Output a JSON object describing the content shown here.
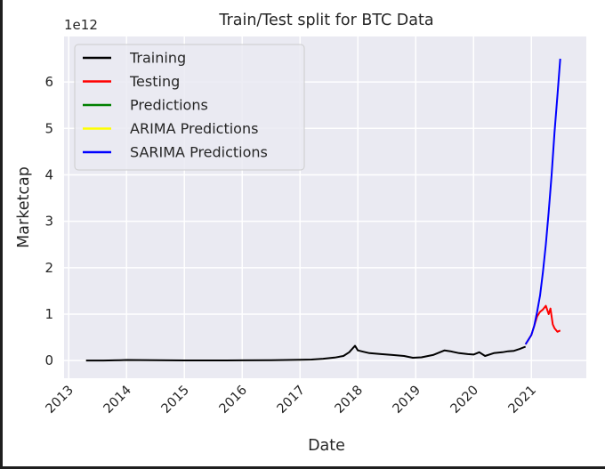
{
  "chart_data": {
    "type": "line",
    "title": "Train/Test split for BTC Data",
    "xlabel": "Date",
    "ylabel": "Marketcap",
    "y_offset_text": "1e12",
    "xlim": [
      2012.92,
      2021.95
    ],
    "ylim": [
      -0.38,
      6.98
    ],
    "x_ticks": [
      "2013",
      "2014",
      "2015",
      "2016",
      "2017",
      "2018",
      "2019",
      "2020",
      "2021"
    ],
    "y_ticks": [
      "0",
      "1",
      "2",
      "3",
      "4",
      "5",
      "6"
    ],
    "grid": true,
    "legend_position": "upper-left",
    "background_color": "#eaeaf2",
    "series": [
      {
        "name": "Training",
        "color": "#000000",
        "x": [
          2013.3,
          2013.6,
          2013.9,
          2014.0,
          2014.5,
          2015.0,
          2015.5,
          2016.0,
          2016.5,
          2017.0,
          2017.2,
          2017.4,
          2017.6,
          2017.75,
          2017.85,
          2017.95,
          2018.0,
          2018.1,
          2018.2,
          2018.4,
          2018.6,
          2018.8,
          2018.95,
          2019.1,
          2019.3,
          2019.5,
          2019.6,
          2019.75,
          2019.9,
          2020.0,
          2020.1,
          2020.2,
          2020.35,
          2020.5,
          2020.6,
          2020.7,
          2020.8,
          2020.9
        ],
        "y": [
          0.002,
          0.002,
          0.01,
          0.013,
          0.008,
          0.004,
          0.004,
          0.006,
          0.01,
          0.016,
          0.022,
          0.04,
          0.065,
          0.1,
          0.18,
          0.32,
          0.22,
          0.19,
          0.16,
          0.14,
          0.12,
          0.1,
          0.06,
          0.07,
          0.12,
          0.22,
          0.2,
          0.16,
          0.14,
          0.13,
          0.18,
          0.1,
          0.16,
          0.18,
          0.2,
          0.21,
          0.25,
          0.3
        ]
      },
      {
        "name": "Testing",
        "color": "#ff0000",
        "x": [
          2020.9,
          2021.0,
          2021.05,
          2021.1,
          2021.15,
          2021.2,
          2021.25,
          2021.3,
          2021.33,
          2021.37,
          2021.4,
          2021.45,
          2021.5
        ],
        "y": [
          0.35,
          0.55,
          0.75,
          0.95,
          1.05,
          1.1,
          1.18,
          1.0,
          1.12,
          0.78,
          0.7,
          0.62,
          0.65
        ]
      },
      {
        "name": "Predictions",
        "color": "#008000",
        "x": [],
        "y": []
      },
      {
        "name": "ARIMA Predictions",
        "color": "#ffff00",
        "x": [],
        "y": []
      },
      {
        "name": "SARIMA Predictions",
        "color": "#0000ff",
        "x": [
          2020.9,
          2021.0,
          2021.05,
          2021.1,
          2021.15,
          2021.2,
          2021.25,
          2021.3,
          2021.35,
          2021.4,
          2021.45,
          2021.5
        ],
        "y": [
          0.35,
          0.55,
          0.75,
          1.05,
          1.4,
          1.9,
          2.5,
          3.2,
          4.0,
          4.9,
          5.7,
          6.5
        ]
      }
    ]
  }
}
